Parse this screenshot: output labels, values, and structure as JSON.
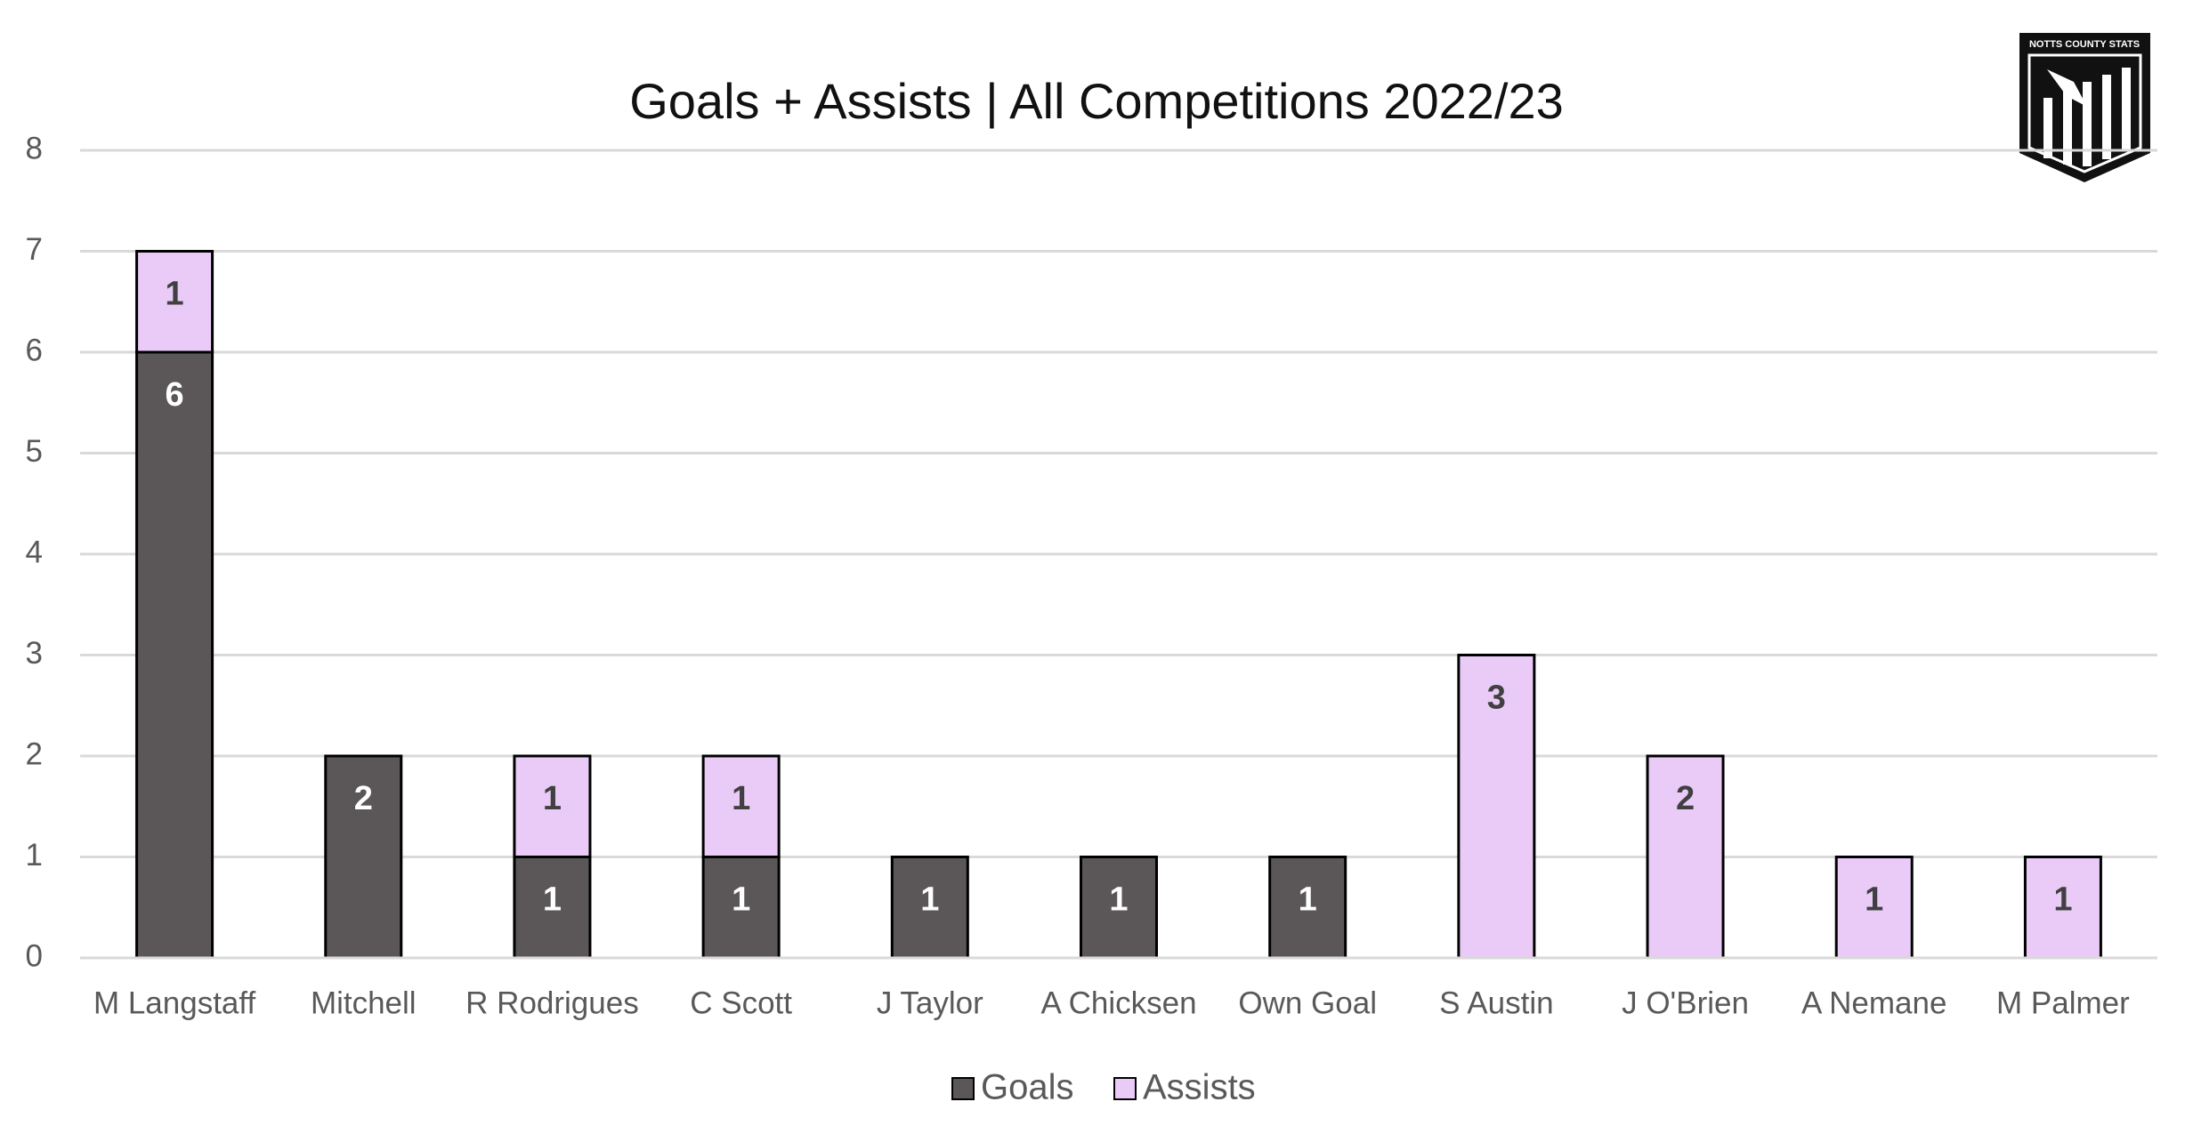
{
  "chart_data": {
    "type": "stacked_bar",
    "title": "Goals + Assists | All Competitions 2022/23",
    "categories": [
      "M Langstaff",
      "Mitchell",
      "R Rodrigues",
      "C Scott",
      "J Taylor",
      "A Chicksen",
      "Own Goal",
      "S Austin",
      "J O'Brien",
      "A Nemane",
      "M Palmer"
    ],
    "series": [
      {
        "name": "Goals",
        "color": "#5b5758",
        "values": [
          6,
          2,
          1,
          1,
          1,
          1,
          1,
          0,
          0,
          0,
          0
        ]
      },
      {
        "name": "Assists",
        "color": "#eacbf7",
        "values": [
          1,
          0,
          1,
          1,
          0,
          0,
          0,
          3,
          2,
          1,
          1
        ]
      }
    ],
    "ylim": [
      0,
      8
    ],
    "yticks": [
      0,
      1,
      2,
      3,
      4,
      5,
      6,
      7,
      8
    ],
    "grid": true,
    "legend": "bottom"
  },
  "logo": {
    "text": "NOTTS COUNTY STATS"
  }
}
